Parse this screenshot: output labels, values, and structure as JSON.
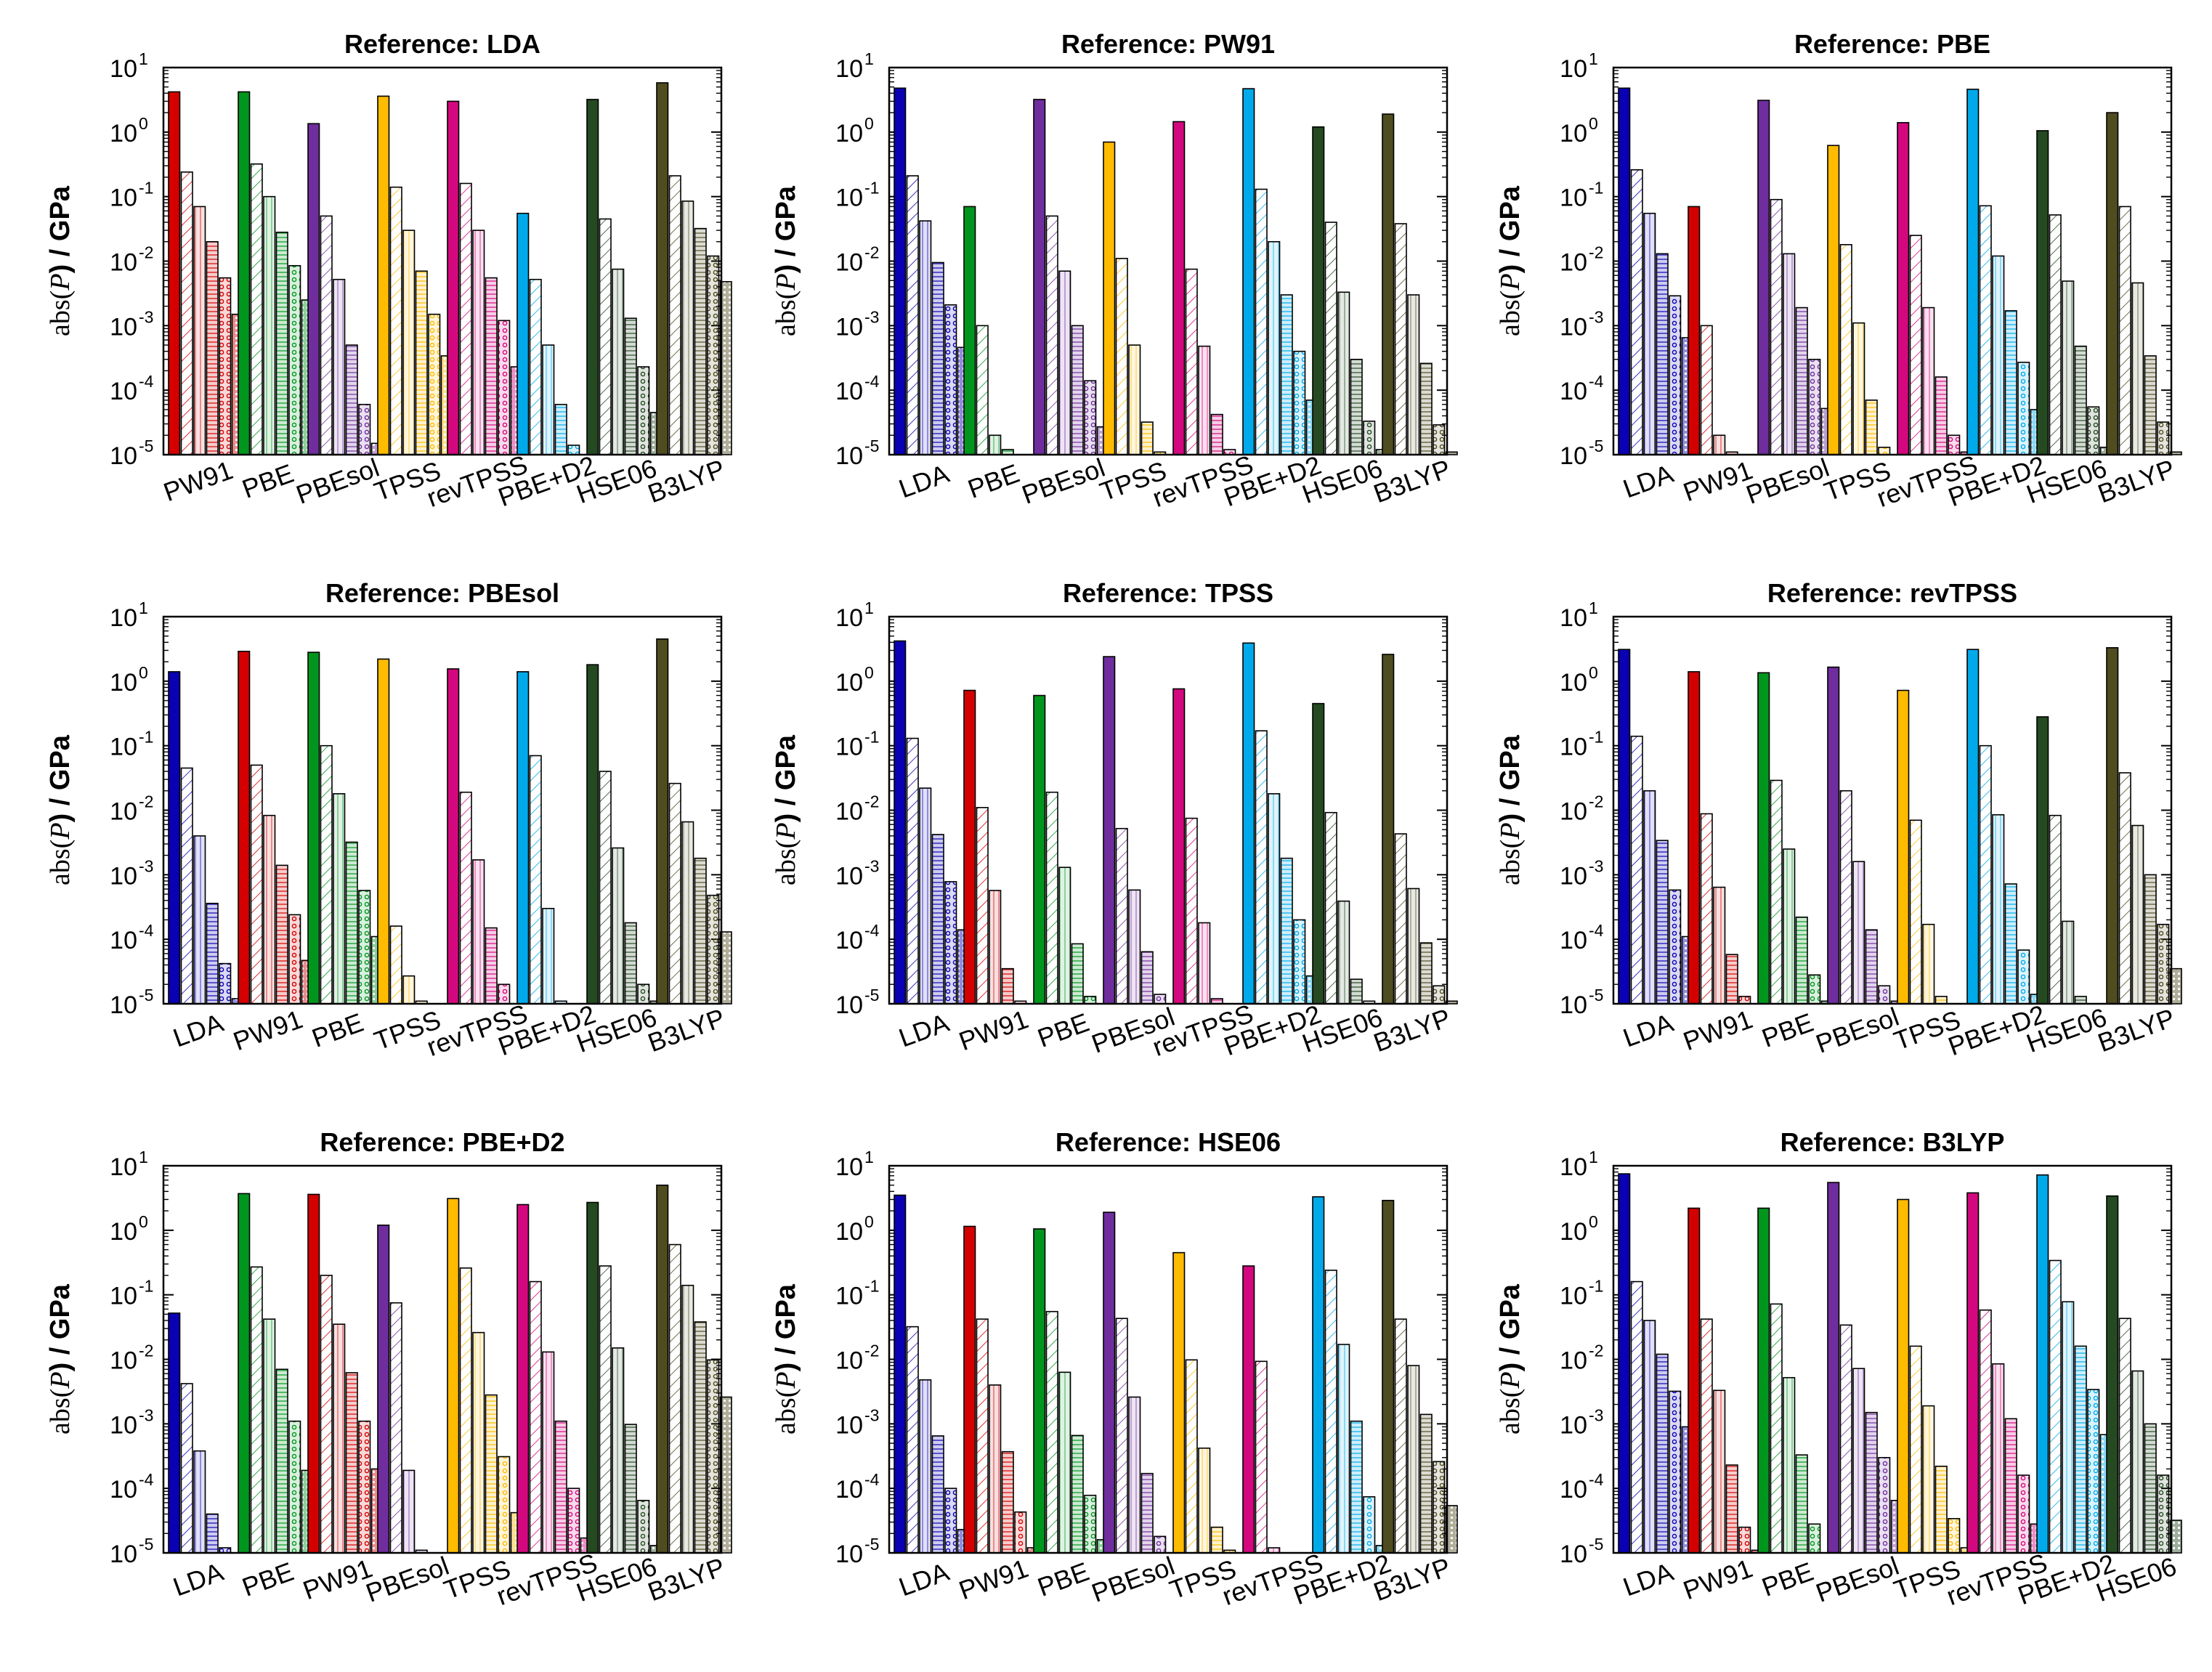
{
  "figure": {
    "ylabel": {
      "prefix": "abs(",
      "var": "P",
      "suffix": ") / GPa"
    },
    "yticks": [
      {
        "base": "10",
        "exp": "1"
      },
      {
        "base": "10",
        "exp": "0"
      },
      {
        "base": "10",
        "exp": "-1"
      },
      {
        "base": "10",
        "exp": "-2"
      },
      {
        "base": "10",
        "exp": "-3"
      },
      {
        "base": "10",
        "exp": "-4"
      },
      {
        "base": "10",
        "exp": "-5"
      }
    ]
  },
  "colors": {
    "LDA": "#0a00b4",
    "PW91": "#d40000",
    "PBE": "#00961e",
    "PBEsol": "#6f2d9e",
    "TPSS": "#ffbb00",
    "revTPSS": "#d4087e",
    "PBE+D2": "#00aaea",
    "HSE06": "#254a22",
    "B3LYP": "#4f4c20"
  },
  "chart_data": [
    {
      "type": "bar",
      "title": "Reference: LDA",
      "scale": "log",
      "ylim": [
        1e-05,
        10
      ],
      "categories": [
        "PW91",
        "PBE",
        "PBEsol",
        "TPSS",
        "revTPSS",
        "PBE+D2",
        "HSE06",
        "B3LYP"
      ],
      "values": [
        [
          4.2,
          0.24,
          0.07,
          0.02,
          0.0055,
          0.0015
        ],
        [
          4.2,
          0.32,
          0.1,
          0.028,
          0.0085,
          0.0025
        ],
        [
          1.35,
          0.05,
          0.0052,
          0.0005,
          6e-05,
          1.5e-05
        ],
        [
          3.6,
          0.14,
          0.03,
          0.007,
          0.0015,
          0.00034
        ],
        [
          3.0,
          0.16,
          0.03,
          0.0055,
          0.0012,
          0.00023
        ],
        [
          0.055,
          0.0052,
          0.0005,
          6e-05,
          1.4e-05,
          0
        ],
        [
          3.2,
          0.045,
          0.0075,
          0.0013,
          0.00023,
          4.5e-05
        ],
        [
          5.8,
          0.21,
          0.085,
          0.032,
          0.012,
          0.0048
        ]
      ]
    },
    {
      "type": "bar",
      "title": "Reference: PW91",
      "scale": "log",
      "ylim": [
        1e-05,
        10
      ],
      "categories": [
        "LDA",
        "PBE",
        "PBEsol",
        "TPSS",
        "revTPSS",
        "PBE+D2",
        "HSE06",
        "B3LYP"
      ],
      "values": [
        [
          4.8,
          0.21,
          0.042,
          0.0095,
          0.0021,
          0.00046
        ],
        [
          0.07,
          0.001,
          2e-05,
          1.2e-05,
          0,
          0
        ],
        [
          3.2,
          0.05,
          0.007,
          0.001,
          0.00014,
          2.7e-05
        ],
        [
          0.7,
          0.011,
          0.0005,
          3.2e-05,
          1.1e-05,
          0
        ],
        [
          1.45,
          0.0075,
          0.00048,
          4.2e-05,
          1.2e-05,
          0
        ],
        [
          4.7,
          0.13,
          0.02,
          0.003,
          0.0004,
          7e-05
        ],
        [
          1.2,
          0.04,
          0.0033,
          0.0003,
          3.3e-05,
          1.2e-05
        ],
        [
          1.9,
          0.038,
          0.003,
          0.00026,
          2.9e-05,
          1.1e-05
        ]
      ]
    },
    {
      "type": "bar",
      "title": "Reference: PBE",
      "scale": "log",
      "ylim": [
        1e-05,
        10
      ],
      "categories": [
        "LDA",
        "PW91",
        "PBEsol",
        "TPSS",
        "revTPSS",
        "PBE+D2",
        "HSE06",
        "B3LYP"
      ],
      "values": [
        [
          4.8,
          0.26,
          0.055,
          0.013,
          0.0029,
          0.00065
        ],
        [
          0.07,
          0.001,
          2e-05,
          1.1e-05,
          0,
          0
        ],
        [
          3.1,
          0.09,
          0.013,
          0.0019,
          0.0003,
          5.2e-05
        ],
        [
          0.62,
          0.018,
          0.0011,
          7e-05,
          1.3e-05,
          0
        ],
        [
          1.4,
          0.025,
          0.0019,
          0.00016,
          2e-05,
          1.1e-05
        ],
        [
          4.6,
          0.072,
          0.012,
          0.0017,
          0.00027,
          5e-05
        ],
        [
          1.05,
          0.052,
          0.0049,
          0.00048,
          5.5e-05,
          1.3e-05
        ],
        [
          2.0,
          0.07,
          0.0046,
          0.00034,
          3.2e-05,
          1.1e-05
        ]
      ]
    },
    {
      "type": "bar",
      "title": "Reference: PBEsol",
      "scale": "log",
      "ylim": [
        1e-05,
        10
      ],
      "categories": [
        "LDA",
        "PW91",
        "PBE",
        "TPSS",
        "revTPSS",
        "PBE+D2",
        "HSE06",
        "B3LYP"
      ],
      "values": [
        [
          1.4,
          0.045,
          0.004,
          0.00036,
          4.2e-05,
          1.2e-05
        ],
        [
          2.9,
          0.05,
          0.0083,
          0.0014,
          0.00024,
          4.7e-05
        ],
        [
          2.8,
          0.1,
          0.018,
          0.0032,
          0.00057,
          0.00011
        ],
        [
          2.2,
          0.00016,
          2.7e-05,
          1.1e-05,
          0,
          0
        ],
        [
          1.55,
          0.019,
          0.0017,
          0.00015,
          2e-05,
          0
        ],
        [
          1.4,
          0.07,
          0.0003,
          1.1e-05,
          0,
          0
        ],
        [
          1.8,
          0.04,
          0.0026,
          0.00018,
          2e-05,
          1.1e-05
        ],
        [
          4.5,
          0.026,
          0.0066,
          0.0018,
          0.00048,
          0.00013
        ]
      ]
    },
    {
      "type": "bar",
      "title": "Reference: TPSS",
      "scale": "log",
      "ylim": [
        1e-05,
        10
      ],
      "categories": [
        "LDA",
        "PW91",
        "PBE",
        "PBEsol",
        "revTPSS",
        "PBE+D2",
        "HSE06",
        "B3LYP"
      ],
      "values": [
        [
          4.2,
          0.13,
          0.022,
          0.0042,
          0.00078,
          0.00014
        ],
        [
          0.72,
          0.011,
          0.00057,
          3.5e-05,
          1.1e-05,
          0
        ],
        [
          0.6,
          0.019,
          0.0013,
          8.5e-05,
          1.3e-05,
          0
        ],
        [
          2.4,
          0.0052,
          0.00058,
          6.4e-05,
          1.4e-05,
          0
        ],
        [
          0.76,
          0.0075,
          0.00018,
          1.2e-05,
          0,
          0
        ],
        [
          3.9,
          0.17,
          0.018,
          0.0018,
          0.0002,
          2.7e-05
        ],
        [
          0.45,
          0.0092,
          0.00039,
          2.4e-05,
          1.1e-05,
          0
        ],
        [
          2.6,
          0.0043,
          0.00061,
          8.8e-05,
          1.9e-05,
          1.1e-05
        ]
      ]
    },
    {
      "type": "bar",
      "title": "Reference: revTPSS",
      "scale": "log",
      "ylim": [
        1e-05,
        10
      ],
      "categories": [
        "LDA",
        "PW91",
        "PBE",
        "PBEsol",
        "TPSS",
        "PBE+D2",
        "HSE06",
        "B3LYP"
      ],
      "values": [
        [
          3.1,
          0.14,
          0.02,
          0.0034,
          0.00058,
          0.00011
        ],
        [
          1.4,
          0.0088,
          0.00064,
          5.8e-05,
          1.3e-05,
          0
        ],
        [
          1.35,
          0.029,
          0.0025,
          0.00022,
          2.8e-05,
          1.1e-05
        ],
        [
          1.65,
          0.02,
          0.0016,
          0.00014,
          1.9e-05,
          1.1e-05
        ],
        [
          0.72,
          0.007,
          0.00017,
          1.3e-05,
          0,
          0
        ],
        [
          3.1,
          0.1,
          0.0085,
          0.00072,
          6.8e-05,
          1.4e-05
        ],
        [
          0.28,
          0.0083,
          0.00019,
          1.3e-05,
          0,
          0
        ],
        [
          3.3,
          0.038,
          0.0058,
          0.001,
          0.00017,
          3.5e-05
        ]
      ]
    },
    {
      "type": "bar",
      "title": "Reference: PBE+D2",
      "scale": "log",
      "ylim": [
        1e-05,
        10
      ],
      "categories": [
        "LDA",
        "PBE",
        "PW91",
        "PBEsol",
        "TPSS",
        "revTPSS",
        "HSE06",
        "B3LYP"
      ],
      "values": [
        [
          0.052,
          0.0042,
          0.00038,
          4e-05,
          1.2e-05,
          0
        ],
        [
          3.7,
          0.27,
          0.042,
          0.007,
          0.0011,
          0.00019
        ],
        [
          3.6,
          0.2,
          0.035,
          0.0062,
          0.0011,
          0.0002
        ],
        [
          1.2,
          0.075,
          0.00019,
          1.1e-05,
          0,
          0
        ],
        [
          3.1,
          0.26,
          0.026,
          0.0028,
          0.00031,
          4.2e-05
        ],
        [
          2.5,
          0.16,
          0.013,
          0.0011,
          0.0001,
          1.7e-05
        ],
        [
          2.7,
          0.28,
          0.015,
          0.00098,
          6.5e-05,
          1.3e-05
        ],
        [
          5.0,
          0.6,
          0.14,
          0.038,
          0.0098,
          0.0026
        ]
      ]
    },
    {
      "type": "bar",
      "title": "Reference: HSE06",
      "scale": "log",
      "ylim": [
        1e-05,
        10
      ],
      "categories": [
        "LDA",
        "PW91",
        "PBE",
        "PBEsol",
        "TPSS",
        "revTPSS",
        "PBE+D2",
        "B3LYP"
      ],
      "values": [
        [
          3.5,
          0.032,
          0.0048,
          0.00065,
          0.0001,
          2.3e-05
        ],
        [
          1.15,
          0.042,
          0.004,
          0.00037,
          4.3e-05,
          1.2e-05
        ],
        [
          1.05,
          0.055,
          0.0063,
          0.00066,
          7.8e-05,
          1.6e-05
        ],
        [
          1.9,
          0.043,
          0.0026,
          0.00017,
          1.8e-05,
          0
        ],
        [
          0.45,
          0.0098,
          0.00042,
          2.5e-05,
          1.1e-05,
          0
        ],
        [
          0.28,
          0.0093,
          1.2e-05,
          0,
          0,
          0
        ],
        [
          3.3,
          0.24,
          0.017,
          0.0011,
          7.4e-05,
          1.3e-05
        ],
        [
          2.9,
          0.042,
          0.008,
          0.0014,
          0.00026,
          5.4e-05
        ]
      ]
    },
    {
      "type": "bar",
      "title": "Reference: B3LYP",
      "scale": "log",
      "ylim": [
        1e-05,
        10
      ],
      "categories": [
        "LDA",
        "PW91",
        "PBE",
        "PBEsol",
        "TPSS",
        "revTPSS",
        "PBE+D2",
        "HSE06"
      ],
      "values": [
        [
          7.5,
          0.16,
          0.04,
          0.012,
          0.0032,
          0.0009
        ],
        [
          2.2,
          0.042,
          0.0033,
          0.00023,
          2.5e-05,
          1.1e-05
        ],
        [
          2.2,
          0.072,
          0.0052,
          0.00033,
          2.8e-05,
          0
        ],
        [
          5.5,
          0.034,
          0.0072,
          0.0015,
          0.0003,
          6.5e-05
        ],
        [
          3.0,
          0.016,
          0.0019,
          0.00022,
          3.4e-05,
          1.2e-05
        ],
        [
          3.8,
          0.058,
          0.0085,
          0.0012,
          0.00016,
          2.8e-05
        ],
        [
          7.2,
          0.34,
          0.078,
          0.016,
          0.0034,
          0.00068
        ],
        [
          3.4,
          0.043,
          0.0066,
          0.001,
          0.00016,
          3.2e-05
        ]
      ]
    }
  ]
}
